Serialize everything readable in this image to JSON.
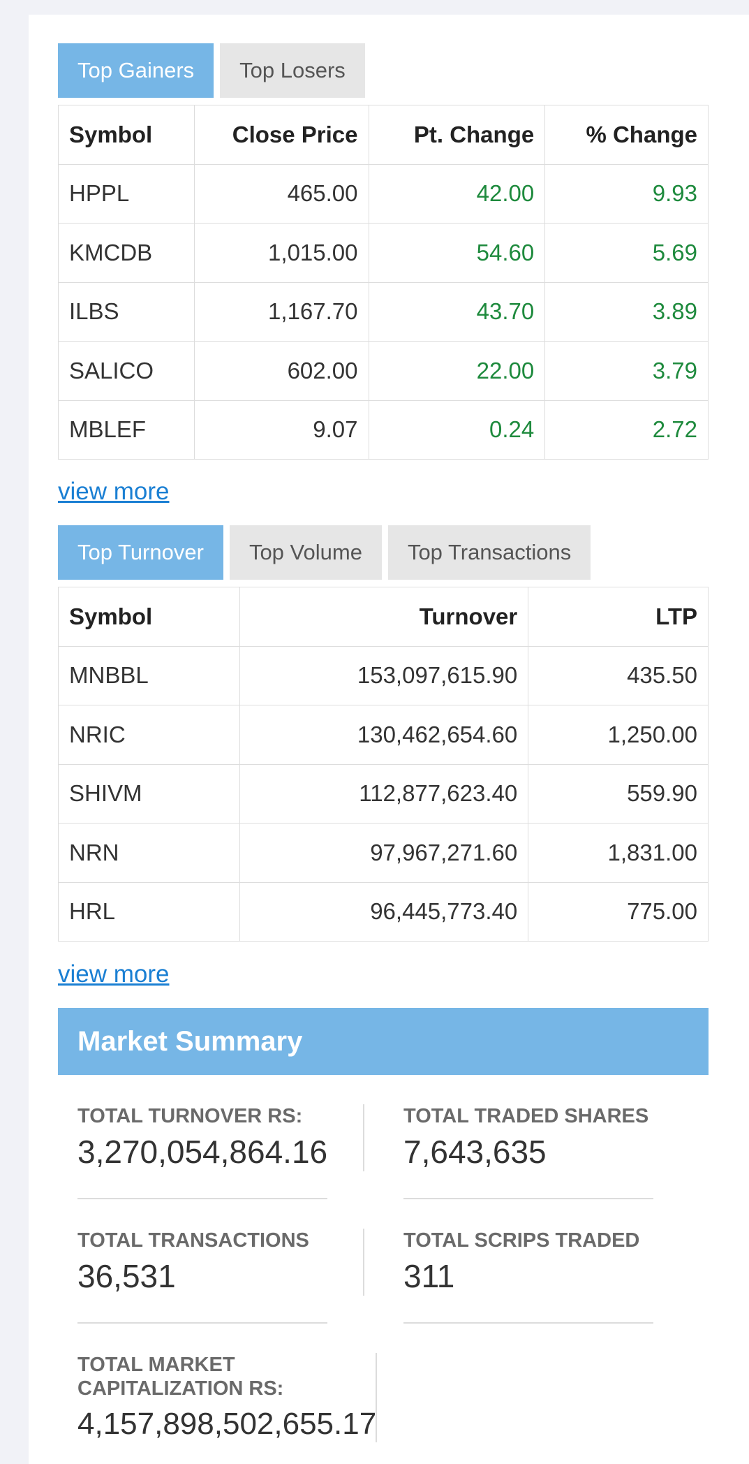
{
  "gainers_tabs": [
    "Top Gainers",
    "Top Losers"
  ],
  "gainers_table": {
    "headers": [
      "Symbol",
      "Close Price",
      "Pt. Change",
      "% Change"
    ],
    "rows": [
      [
        "HPPL",
        "465.00",
        "42.00",
        "9.93"
      ],
      [
        "KMCDB",
        "1,015.00",
        "54.60",
        "5.69"
      ],
      [
        "ILBS",
        "1,167.70",
        "43.70",
        "3.89"
      ],
      [
        "SALICO",
        "602.00",
        "22.00",
        "3.79"
      ],
      [
        "MBLEF",
        "9.07",
        "0.24",
        "2.72"
      ]
    ]
  },
  "view_more_1": "view more",
  "turnover_tabs": [
    "Top Turnover",
    "Top Volume",
    "Top Transactions"
  ],
  "turnover_table": {
    "headers": [
      "Symbol",
      "Turnover",
      "LTP"
    ],
    "rows": [
      [
        "MNBBL",
        "153,097,615.90",
        "435.50"
      ],
      [
        "NRIC",
        "130,462,654.60",
        "1,250.00"
      ],
      [
        "SHIVM",
        "112,877,623.40",
        "559.90"
      ],
      [
        "NRN",
        "97,967,271.60",
        "1,831.00"
      ],
      [
        "HRL",
        "96,445,773.40",
        "775.00"
      ]
    ]
  },
  "view_more_2": "view more",
  "market_summary": {
    "title": "Market Summary",
    "stats": [
      {
        "label": "TOTAL TURNOVER RS:",
        "value": "3,270,054,864.16"
      },
      {
        "label": "TOTAL TRADED SHARES",
        "value": "7,643,635"
      },
      {
        "label": "TOTAL TRANSACTIONS",
        "value": "36,531"
      },
      {
        "label": "TOTAL SCRIPS TRADED",
        "value": "311"
      },
      {
        "label": "TOTAL MARKET CAPITALIZATION RS:",
        "value": "4,157,898,502,655.17"
      }
    ]
  },
  "colors": {
    "accent": "#76b6e6",
    "positive": "#1e8a3d",
    "link": "#1a7fd3"
  }
}
